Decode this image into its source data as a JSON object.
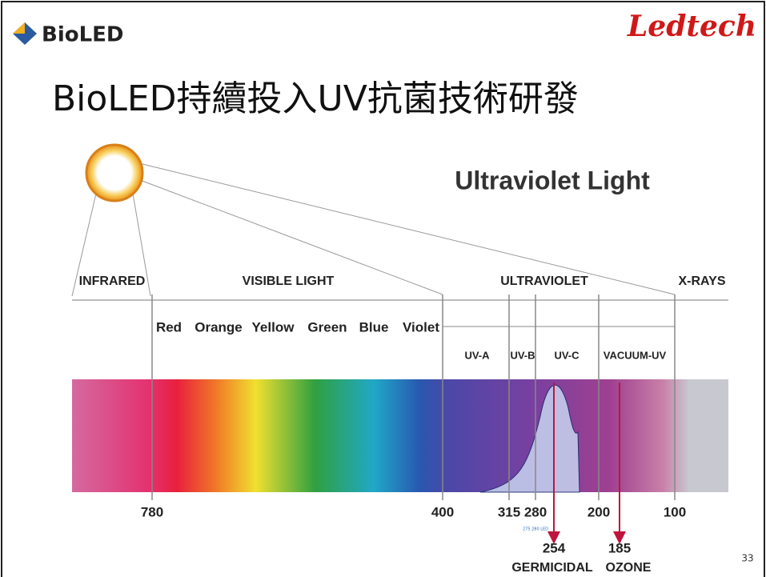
{
  "header": {
    "logo": "BioLED",
    "brand": "Ledtech",
    "title": "BioLED持續投入UV抗菌技術研發"
  },
  "diagram": {
    "title": "Ultraviolet Light",
    "regions": [
      "INFRARED",
      "VISIBLE LIGHT",
      "ULTRAVIOLET",
      "X-RAYS"
    ],
    "colors": [
      "Red",
      "Orange",
      "Yellow",
      "Green",
      "Blue",
      "Violet"
    ],
    "uv_bands": [
      "UV-A",
      "UV-B",
      "UV-C",
      "VACUUM-UV"
    ],
    "wavelengths": [
      "780",
      "400",
      "315",
      "280",
      "200",
      "100"
    ],
    "led_note": "275 280 LED",
    "markers": [
      {
        "wavelength": "254",
        "label": "GERMICIDAL"
      },
      {
        "wavelength": "185",
        "label": "OZONE"
      }
    ]
  },
  "page_number": "33"
}
